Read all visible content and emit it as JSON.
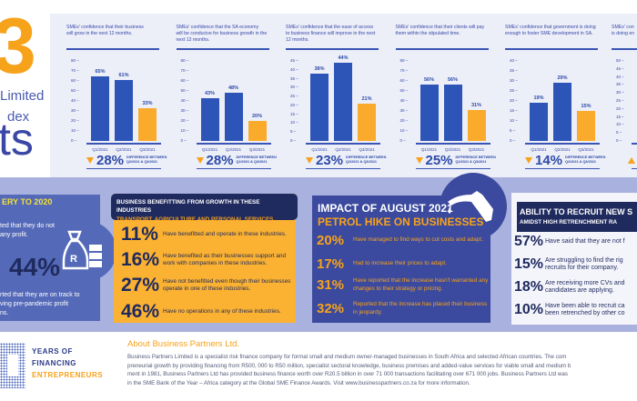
{
  "title": {
    "big": "3",
    "line1": "Limited",
    "line2": "dex",
    "line3": "ts"
  },
  "colors": {
    "blue_bar": "#2d55b8",
    "orange_bar": "#fbab2c",
    "navy": "#1f2a5e",
    "accent": "#f7a21b"
  },
  "chart_data": [
    {
      "type": "bar",
      "title_lines": [
        "SMEs' confidence that their business",
        "will grow in the next 12 months."
      ],
      "categories": [
        "Q1/2021",
        "Q2/2021",
        "Q3/2021"
      ],
      "values": [
        65,
        61,
        33
      ],
      "labels": [
        "65%",
        "61%",
        "33%"
      ],
      "ylim": [
        0,
        80
      ],
      "yticks": [
        0,
        10,
        20,
        30,
        40,
        50,
        60,
        70,
        80
      ],
      "diff": "28%",
      "diff_label": [
        "DIFFERENCE BETWEEN",
        "Q2/2021 & Q3/2021"
      ]
    },
    {
      "type": "bar",
      "title_lines": [
        "SMEs' confidence that the SA economy",
        "will be conducive for business growth in the",
        "next 12 months."
      ],
      "categories": [
        "Q1/2021",
        "Q2/2021",
        "Q3/2021"
      ],
      "values": [
        43,
        48,
        20
      ],
      "labels": [
        "43%",
        "48%",
        "20%"
      ],
      "ylim": [
        0,
        80
      ],
      "yticks": [
        0,
        10,
        20,
        30,
        40,
        50,
        60,
        70,
        80
      ],
      "diff": "28%",
      "diff_label": [
        "DIFFERENCE BETWEEN",
        "Q2/2021 & Q3/2021"
      ]
    },
    {
      "type": "bar",
      "title_lines": [
        "SMEs' confidence that the ease of access",
        "to business finance will improve in the next",
        "12 months."
      ],
      "categories": [
        "Q1/2021",
        "Q2/2021",
        "Q3/2021"
      ],
      "values": [
        38,
        44,
        21
      ],
      "labels": [
        "38%",
        "44%",
        "21%"
      ],
      "ylim": [
        0,
        45
      ],
      "yticks": [
        0,
        5,
        10,
        15,
        20,
        25,
        30,
        35,
        40,
        45
      ],
      "diff": "23%",
      "diff_label": [
        "DIFFERENCE BETWEEN",
        "Q2/2021 & Q3/2021"
      ]
    },
    {
      "type": "bar",
      "title_lines": [
        "SMEs' confidence that their clients will pay",
        "them within the stipulated time."
      ],
      "categories": [
        "Q1/2021",
        "Q2/2021",
        "Q3/2021"
      ],
      "values": [
        56,
        56,
        31
      ],
      "labels": [
        "56%",
        "56%",
        "31%"
      ],
      "ylim": [
        0,
        80
      ],
      "yticks": [
        0,
        10,
        20,
        30,
        40,
        50,
        60,
        70,
        80
      ],
      "diff": "25%",
      "diff_label": [
        "DIFFERENCE BETWEEN",
        "Q2/2021 & Q3/2021"
      ]
    },
    {
      "type": "bar",
      "title_lines": [
        "SMEs' confidence that government is doing",
        "enough to foster SME development in SA."
      ],
      "categories": [
        "Q1/2021",
        "Q2/2021",
        "Q3/2021"
      ],
      "values": [
        19,
        29,
        15
      ],
      "labels": [
        "19%",
        "29%",
        "15%"
      ],
      "ylim": [
        0,
        40
      ],
      "yticks": [
        0,
        5,
        10,
        15,
        20,
        25,
        30,
        35,
        40
      ],
      "diff": "14%",
      "diff_label": [
        "DIFFERENCE BETWEEN",
        "Q2/2021 & Q3/2021"
      ]
    },
    {
      "type": "bar",
      "title_lines": [
        "SMEs' con",
        "is doing en"
      ],
      "categories": [],
      "values": [],
      "labels": [],
      "ylim": [
        0,
        50
      ],
      "yticks": [
        0,
        5,
        10,
        15,
        20,
        25,
        30,
        35,
        40,
        45,
        50
      ],
      "diff": "",
      "diff_label": [
        "",
        ""
      ]
    }
  ],
  "recovery": {
    "title": "ERY TO 2020",
    "text1": [
      "ted that they do not",
      "any profit."
    ],
    "pct": "44%",
    "text2": [
      "rted that they are on track to",
      "ving pre-pandemic profit",
      "ns."
    ]
  },
  "industries": {
    "title": "BUSINESS BENEFITTING FROM GROWTH IN THESE INDUSTRIES",
    "subtitle": "TRANSPORT, AGRICULTURE AND PERSONAL SERVICES",
    "rows": [
      {
        "pct": "11%",
        "text": "Have benefitted and operate in these industries."
      },
      {
        "pct": "16%",
        "text": "Have benefited as their businesses support and work with companies in these industries."
      },
      {
        "pct": "27%",
        "text": "Have not benefitted even though their businesses operate in one of these industries."
      },
      {
        "pct": "46%",
        "text": "Have no operations in any of these industries."
      }
    ]
  },
  "petrol": {
    "title": "IMPACT OF AUGUST 2021",
    "subtitle": "PETROL HIKE ON BUSINESSES",
    "rows": [
      {
        "pct": "20%",
        "text": "Have managed to find ways to cut costs and adapt."
      },
      {
        "pct": "17%",
        "text": "Had to increase their prices to adapt."
      },
      {
        "pct": "31%",
        "text": "Have reported that the increase hasn't warranted any changes to their strategy or pricing."
      },
      {
        "pct": "32%",
        "text": "Reported that the increase has placed their business in jeopardy."
      }
    ]
  },
  "recruit": {
    "title": "ABILITY TO RECRUIT NEW S",
    "subtitle": "AMIDST HIGH RETRENCHMENT RA",
    "rows": [
      {
        "pct": "57%",
        "line1": "Have said that they are not f",
        "line2": ""
      },
      {
        "pct": "15%",
        "line1": "Are struggling to find the rig",
        "line2": "recruits for their company."
      },
      {
        "pct": "18%",
        "line1": "Are receiving more CVs and",
        "line2": "candidates are applying."
      },
      {
        "pct": "10%",
        "line1": "Have been able to recruit ca",
        "line2": "been retrenched by other co"
      }
    ]
  },
  "footer": {
    "years": "YEARS OF",
    "financing": "FINANCING",
    "entrepreneurs": "ENTREPRENEURS",
    "about_title": "About Business Partners Ltd.",
    "about_lines": [
      "Business Partners Limited is a specialist risk finance company for formal small and medium owner-managed businesses in South Africa and selected African countries. The com",
      "preneurial growth by providing financing from R500, 000 to R50 million, specialist sectoral knowledge, business premises and added-value services for viable small and medium b",
      "ment in 1981, Business Partners Ltd has provided business finance worth over R20.5 billion in over 71 000 transactions facilitating over 671 000 jobs. Business Partners Ltd was",
      "in the SME Bank of the Year – Africa category at the Global SME Finance Awards. Visit www.businesspartners.co.za for more information."
    ]
  }
}
